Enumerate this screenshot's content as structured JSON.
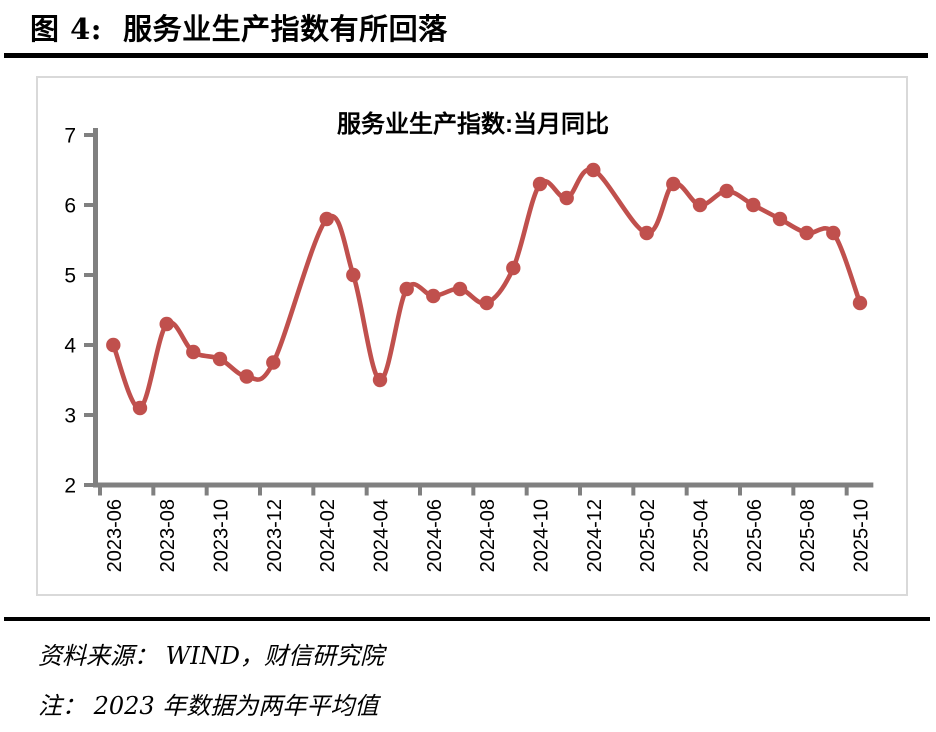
{
  "page": {
    "figure_title": "图 4:  服务业生产指数有所回落",
    "source_line": "资料来源： WIND，财信研究院",
    "note_line": "注： 2023 年数据为两年平均值"
  },
  "colors": {
    "line": "#C0504D",
    "axis": "#808080",
    "frame": "#D9D9D9",
    "text": "#000000",
    "rule": "#000000"
  },
  "chart_data": {
    "type": "line",
    "title": "服务业生产指数:当月同比",
    "series_name": "服务业生产指数:当月同比",
    "x": [
      "2023-06",
      "2023-07",
      "2023-08",
      "2023-09",
      "2023-10",
      "2023-11",
      "2023-12",
      "2024-01",
      "2024-02",
      "2024-03",
      "2024-04",
      "2024-05",
      "2024-06",
      "2024-07",
      "2024-08",
      "2024-09",
      "2024-10",
      "2024-11",
      "2024-12",
      "2025-01",
      "2025-02",
      "2025-03",
      "2025-04",
      "2025-05",
      "2025-06",
      "2025-07",
      "2025-08",
      "2025-09",
      "2025-10"
    ],
    "values": [
      4.0,
      3.1,
      4.3,
      3.9,
      3.8,
      3.55,
      3.75,
      null,
      5.8,
      5.0,
      3.5,
      4.8,
      4.7,
      4.8,
      4.6,
      5.1,
      6.3,
      6.1,
      6.5,
      null,
      5.6,
      6.3,
      6.0,
      6.2,
      6.0,
      5.8,
      5.6,
      5.6,
      4.6
    ],
    "xtick_labels": [
      "2023-06",
      "2023-08",
      "2023-10",
      "2023-12",
      "2024-02",
      "2024-04",
      "2024-06",
      "2024-08",
      "2024-10",
      "2024-12",
      "2025-02",
      "2025-04",
      "2025-06",
      "2025-08",
      "2025-10"
    ],
    "ytick_labels": [
      "2",
      "3",
      "4",
      "5",
      "6",
      "7"
    ],
    "ylim": [
      2,
      7
    ],
    "ytick_interval": 1,
    "grid": false,
    "legend_position": "none",
    "marker": "circle",
    "smooth": true,
    "missing_data_note": "no data points for 2024-01 and 2025-01; line connects across gaps"
  }
}
